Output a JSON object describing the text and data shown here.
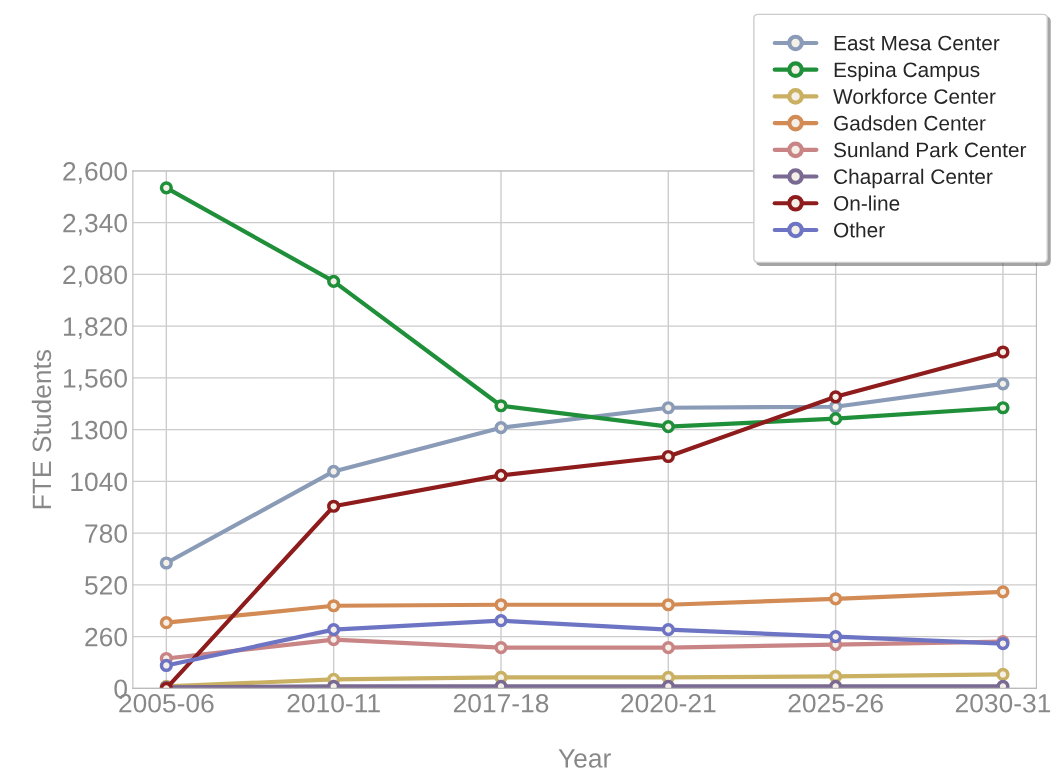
{
  "chart_data": {
    "type": "line",
    "xlabel": "Year",
    "ylabel": "FTE Students",
    "categories": [
      "2005-06",
      "2010-11",
      "2017-18",
      "2020-21",
      "2025-26",
      "2030-31"
    ],
    "series": [
      {
        "name": "East Mesa Center",
        "color": "#8a9bb8",
        "values": [
          630,
          1090,
          1310,
          1410,
          1415,
          1530
        ]
      },
      {
        "name": "Espina Campus",
        "color": "#1f8f3a",
        "values": [
          2515,
          2045,
          1420,
          1315,
          1355,
          1410
        ]
      },
      {
        "name": "Workforce Center",
        "color": "#c9b062",
        "values": [
          10,
          45,
          55,
          55,
          60,
          70
        ]
      },
      {
        "name": "Gadsden Center",
        "color": "#d38b55",
        "values": [
          330,
          415,
          420,
          420,
          450,
          485
        ]
      },
      {
        "name": "Sunland Park Center",
        "color": "#c98585",
        "values": [
          150,
          245,
          205,
          205,
          220,
          235
        ]
      },
      {
        "name": "Chaparral Center",
        "color": "#7a6a92",
        "values": [
          5,
          10,
          10,
          10,
          10,
          10
        ]
      },
      {
        "name": "On-line",
        "color": "#8e1c1c",
        "values": [
          0,
          915,
          1070,
          1165,
          1465,
          1690
        ]
      },
      {
        "name": "Other",
        "color": "#6d74c4",
        "values": [
          115,
          295,
          340,
          295,
          260,
          225
        ]
      }
    ],
    "ylim": [
      0,
      2600
    ],
    "yticks": [
      0,
      260,
      520,
      780,
      1040,
      1300,
      {
        "value": 1560,
        "label": "1,560"
      },
      {
        "value": 1820,
        "label": "1,820"
      },
      {
        "value": 2080,
        "label": "2,080"
      },
      {
        "value": 2340,
        "label": "2,340"
      },
      {
        "value": 2600,
        "label": "2,600"
      }
    ],
    "grid": true,
    "legend": "top right",
    "marker": "circle",
    "line_style": "solid"
  }
}
